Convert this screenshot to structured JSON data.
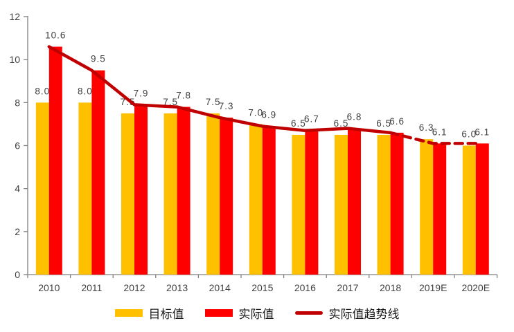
{
  "chart": {
    "background": "#ffffff",
    "axis_color": "#808080",
    "label_color": "#3f3f3f"
  },
  "chart_data": {
    "type": "bar",
    "title": "",
    "xlabel": "",
    "ylabel": "",
    "categories": [
      "2010",
      "2011",
      "2012",
      "2013",
      "2014",
      "2015",
      "2016",
      "2017",
      "2018",
      "2019E",
      "2020E"
    ],
    "series": [
      {
        "name": "目标值",
        "type": "bar",
        "color": "#FFC000",
        "values": [
          8.0,
          8.0,
          7.5,
          7.5,
          7.5,
          7.0,
          6.5,
          6.5,
          6.5,
          6.3,
          6.0
        ]
      },
      {
        "name": "实际值",
        "type": "bar",
        "color": "#FF0000",
        "values": [
          10.6,
          9.5,
          7.9,
          7.8,
          7.3,
          6.9,
          6.7,
          6.8,
          6.6,
          6.1,
          6.1
        ]
      },
      {
        "name": "实际值趋势线",
        "type": "line",
        "color": "#C00000",
        "values": [
          10.6,
          9.5,
          7.9,
          7.8,
          7.3,
          6.9,
          6.7,
          6.8,
          6.6,
          6.1,
          6.1
        ],
        "dash_start_category": "2018"
      }
    ],
    "ylim": [
      0,
      12
    ],
    "yticks": [
      0,
      2,
      4,
      6,
      8,
      10,
      12
    ],
    "grid": false,
    "legend_position": "bottom",
    "data_labels": true,
    "data_label_decimals": 1
  },
  "legend": {
    "items": [
      {
        "label": "目标值",
        "swatch": "bar",
        "color": "#FFC000"
      },
      {
        "label": "实际值",
        "swatch": "bar",
        "color": "#FF0000"
      },
      {
        "label": "实际值趋势线",
        "swatch": "line",
        "color": "#C00000"
      }
    ]
  }
}
